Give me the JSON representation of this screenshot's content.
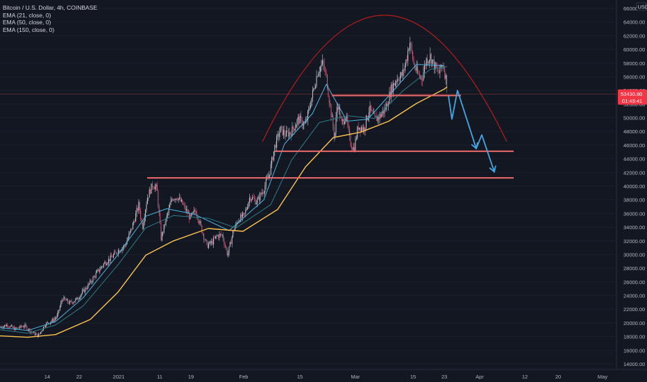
{
  "chart_data": {
    "type": "candlestick",
    "legend": [
      "Bitcoin / U.S. Dollar, 4h, COINBASE",
      "EMA (21, close, 0)",
      "EMA (50, close, 0)",
      "EMA (150, close, 0)"
    ],
    "currency": "USD",
    "x_ticks": [
      "14",
      "22",
      "2021",
      "11",
      "19",
      "Feb",
      "15",
      "Mar",
      "15",
      "23",
      "Apr",
      "12",
      "20",
      "May"
    ],
    "y_ticks": [
      "66000.00",
      "64000.00",
      "62000.00",
      "60000.00",
      "58000.00",
      "56000.00",
      "54000.00",
      "52000.00",
      "50000.00",
      "48000.00",
      "46000.00",
      "44000.00",
      "42000.00",
      "40000.00",
      "38000.00",
      "36000.00",
      "34000.00",
      "32000.00",
      "30000.00",
      "28000.00",
      "26000.00",
      "24000.00",
      "22000.00",
      "20000.00",
      "18000.00",
      "16000.00",
      "14000.00"
    ],
    "ylim": [
      13000,
      67000
    ],
    "last_price": {
      "price": "53430.80",
      "countdown": "01:49:41",
      "value": 53430.8
    },
    "price_path": [
      [
        0,
        19400
      ],
      [
        10,
        19700
      ],
      [
        22,
        19100
      ],
      [
        35,
        19600
      ],
      [
        45,
        18700
      ],
      [
        55,
        18100
      ],
      [
        65,
        19800
      ],
      [
        75,
        20300
      ],
      [
        82,
        20900
      ],
      [
        90,
        23600
      ],
      [
        100,
        22900
      ],
      [
        110,
        23400
      ],
      [
        120,
        24600
      ],
      [
        130,
        25900
      ],
      [
        140,
        27400
      ],
      [
        150,
        28700
      ],
      [
        160,
        29500
      ],
      [
        170,
        30600
      ],
      [
        180,
        31300
      ],
      [
        190,
        33900
      ],
      [
        200,
        37300
      ],
      [
        205,
        33900
      ],
      [
        212,
        38300
      ],
      [
        220,
        40300
      ],
      [
        226,
        39600
      ],
      [
        232,
        32400
      ],
      [
        240,
        35400
      ],
      [
        248,
        38300
      ],
      [
        256,
        38400
      ],
      [
        265,
        37000
      ],
      [
        274,
        35300
      ],
      [
        282,
        36500
      ],
      [
        290,
        33800
      ],
      [
        298,
        31300
      ],
      [
        306,
        31800
      ],
      [
        312,
        32700
      ],
      [
        320,
        32900
      ],
      [
        328,
        29900
      ],
      [
        336,
        33400
      ],
      [
        344,
        35200
      ],
      [
        352,
        35700
      ],
      [
        360,
        38500
      ],
      [
        370,
        37700
      ],
      [
        380,
        39600
      ],
      [
        388,
        41800
      ],
      [
        396,
        45900
      ],
      [
        404,
        48300
      ],
      [
        412,
        47500
      ],
      [
        420,
        48000
      ],
      [
        430,
        49800
      ],
      [
        440,
        48900
      ],
      [
        450,
        53400
      ],
      [
        458,
        56900
      ],
      [
        465,
        57900
      ],
      [
        470,
        55900
      ],
      [
        476,
        51400
      ],
      [
        482,
        47000
      ],
      [
        486,
        52400
      ],
      [
        492,
        49000
      ],
      [
        498,
        50400
      ],
      [
        504,
        46500
      ],
      [
        510,
        45400
      ],
      [
        516,
        48800
      ],
      [
        524,
        48400
      ],
      [
        532,
        51300
      ],
      [
        540,
        49700
      ],
      [
        548,
        50300
      ],
      [
        556,
        51500
      ],
      [
        564,
        54300
      ],
      [
        572,
        55800
      ],
      [
        580,
        56300
      ],
      [
        586,
        58800
      ],
      [
        590,
        61300
      ],
      [
        596,
        57800
      ],
      [
        602,
        56300
      ],
      [
        608,
        55800
      ],
      [
        614,
        58500
      ],
      [
        620,
        59000
      ],
      [
        626,
        57500
      ],
      [
        632,
        56500
      ],
      [
        638,
        58000
      ],
      [
        644,
        54800
      ]
    ],
    "ema_paths": [
      {
        "name": "EMA (21, close, 0)",
        "color": "#4db6e6",
        "points": [
          [
            0,
            19300
          ],
          [
            40,
            18900
          ],
          [
            80,
            20200
          ],
          [
            120,
            23700
          ],
          [
            170,
            30000
          ],
          [
            210,
            35600
          ],
          [
            240,
            36700
          ],
          [
            280,
            35900
          ],
          [
            330,
            33500
          ],
          [
            380,
            38000
          ],
          [
            410,
            46200
          ],
          [
            450,
            50600
          ],
          [
            470,
            54900
          ],
          [
            500,
            49500
          ],
          [
            530,
            49800
          ],
          [
            560,
            53200
          ],
          [
            600,
            57800
          ],
          [
            640,
            57600
          ]
        ]
      },
      {
        "name": "EMA (50, close, 0)",
        "color": "#2e7d8a",
        "points": [
          [
            0,
            19000
          ],
          [
            40,
            18500
          ],
          [
            80,
            19700
          ],
          [
            120,
            22500
          ],
          [
            170,
            28500
          ],
          [
            210,
            33900
          ],
          [
            250,
            35700
          ],
          [
            300,
            35300
          ],
          [
            340,
            33900
          ],
          [
            390,
            37300
          ],
          [
            420,
            43800
          ],
          [
            460,
            49300
          ],
          [
            500,
            50300
          ],
          [
            540,
            49900
          ],
          [
            580,
            53900
          ],
          [
            620,
            57100
          ],
          [
            644,
            57500
          ]
        ]
      },
      {
        "name": "EMA (150, close, 0)",
        "color": "#ffc44d",
        "points": [
          [
            0,
            18100
          ],
          [
            40,
            17900
          ],
          [
            80,
            18300
          ],
          [
            130,
            20500
          ],
          [
            170,
            24500
          ],
          [
            210,
            29900
          ],
          [
            250,
            32000
          ],
          [
            300,
            33800
          ],
          [
            350,
            33400
          ],
          [
            400,
            36600
          ],
          [
            440,
            42800
          ],
          [
            480,
            47100
          ],
          [
            520,
            47900
          ],
          [
            560,
            49500
          ],
          [
            600,
            52100
          ],
          [
            640,
            54200
          ],
          [
            644,
            54500
          ]
        ]
      }
    ],
    "resistance_lines": [
      {
        "price": 53250,
        "x_from": 478,
        "x_to": 664
      },
      {
        "price": 45100,
        "x_from": 395,
        "x_to": 740
      },
      {
        "price": 41200,
        "x_from": 212,
        "x_to": 740
      }
    ],
    "arc": {
      "x_from": 378,
      "x_to": 730,
      "peak_x": 554,
      "peak_price": 65000,
      "end_price": 46500,
      "color": "#b71c1c"
    },
    "projection": {
      "color": "#43a7e6",
      "points": [
        [
          646,
          53200
        ],
        [
          651,
          49800
        ],
        [
          659,
          54000
        ],
        [
          686,
          45500
        ],
        [
          694,
          47500
        ],
        [
          712,
          42100
        ]
      ]
    }
  }
}
